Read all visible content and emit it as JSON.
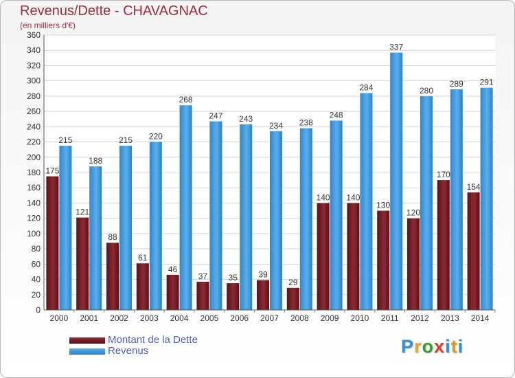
{
  "title": "Revenus/Dette - CHAVAGNAC",
  "subtitle": "(en milliers d'€)",
  "colors": {
    "dette": "#7a1c25",
    "revenus": "#3d96dd",
    "title": "#9b2b3e",
    "legend_text": "#4d5ec8"
  },
  "legend": {
    "items": [
      {
        "label": "Montant de la Dette",
        "color": "#7a1c25"
      },
      {
        "label": "Revenus",
        "color": "#3d96dd"
      }
    ]
  },
  "logo": {
    "text": "Proxiti",
    "letter_colors": [
      "#2e8fd6",
      "#f0a020",
      "#3c9d2f",
      "#e03a2a",
      "#2e8fd6",
      "#d99a1c",
      "#2e8fd6"
    ]
  },
  "chart_data": {
    "type": "bar",
    "categories": [
      "2000",
      "2001",
      "2002",
      "2003",
      "2004",
      "2005",
      "2006",
      "2007",
      "2008",
      "2009",
      "2010",
      "2011",
      "2012",
      "2013",
      "2014"
    ],
    "series": [
      {
        "name": "Montant de la Dette",
        "values": [
          175,
          121,
          88,
          61,
          46,
          37,
          35,
          39,
          29,
          140,
          140,
          130,
          120,
          170,
          154
        ]
      },
      {
        "name": "Revenus",
        "values": [
          215,
          188,
          215,
          220,
          268,
          247,
          243,
          234,
          238,
          248,
          284,
          337,
          280,
          289,
          291
        ]
      }
    ],
    "ylim": [
      0,
      360
    ],
    "yticks": [
      0,
      20,
      40,
      60,
      80,
      100,
      120,
      140,
      160,
      180,
      200,
      220,
      240,
      260,
      280,
      300,
      320,
      340,
      360
    ],
    "grid": true,
    "legend_position": "bottom-left"
  }
}
